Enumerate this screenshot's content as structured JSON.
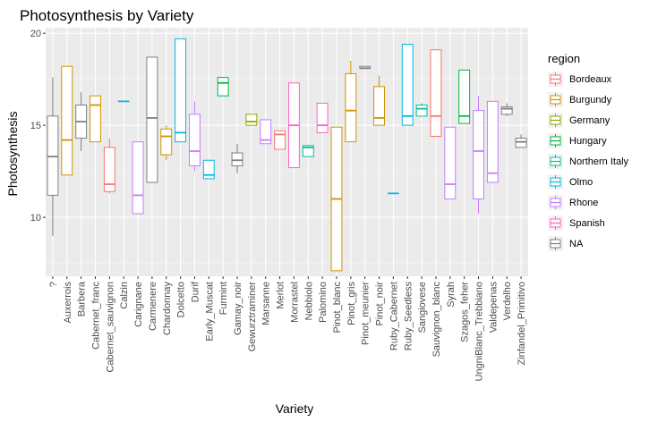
{
  "chart_data": {
    "type": "boxplot",
    "title": "Photosynthesis by Variety",
    "xlabel": "Variety",
    "ylabel": "Photosynthesis",
    "ylim": [
      6.8,
      20.3
    ],
    "yticks": [
      10,
      15,
      20
    ],
    "grid": true,
    "legend": {
      "title": "region",
      "position": "right",
      "entries": [
        "Bordeaux",
        "Burgundy",
        "Germany",
        "Hungary",
        "Northern Italy",
        "Olmo",
        "Rhone",
        "Spanish",
        "NA"
      ]
    },
    "colors": {
      "Bordeaux": "#F8766D",
      "Burgundy": "#D39200",
      "Germany": "#93AA00",
      "Hungary": "#00BA38",
      "Northern Italy": "#00C19F",
      "Olmo": "#00B9E3",
      "Rhone": "#C77CFF",
      "Spanish": "#FF61C3",
      "NA": "#7F7F7F"
    },
    "boxes": [
      {
        "variety": "?",
        "region": "NA",
        "min": 9.0,
        "q1": 11.2,
        "median": 13.3,
        "q3": 15.5,
        "max": 17.6
      },
      {
        "variety": "Auxerrois",
        "region": "Burgundy",
        "min": 12.3,
        "q1": 12.3,
        "median": 14.2,
        "q3": 18.2,
        "max": 18.2
      },
      {
        "variety": "Barbera",
        "region": "NA",
        "min": 13.6,
        "q1": 14.3,
        "median": 15.2,
        "q3": 16.1,
        "max": 16.8
      },
      {
        "variety": "Cabernet_franc",
        "region": "Burgundy",
        "min": 14.1,
        "q1": 14.1,
        "median": 16.1,
        "q3": 16.6,
        "max": 16.6
      },
      {
        "variety": "Cabernet_sauvignon",
        "region": "Bordeaux",
        "min": 11.3,
        "q1": 11.4,
        "median": 11.8,
        "q3": 13.8,
        "max": 14.3
      },
      {
        "variety": "Calzin",
        "region": "Olmo",
        "min": 16.3,
        "q1": 16.3,
        "median": 16.3,
        "q3": 16.3,
        "max": 16.3
      },
      {
        "variety": "Carignane",
        "region": "Rhone",
        "min": 10.2,
        "q1": 10.2,
        "median": 11.2,
        "q3": 14.1,
        "max": 14.1
      },
      {
        "variety": "Carmenere",
        "region": "NA",
        "min": 11.9,
        "q1": 11.9,
        "median": 15.4,
        "q3": 18.7,
        "max": 18.7
      },
      {
        "variety": "Chardonnay",
        "region": "Burgundy",
        "min": 13.1,
        "q1": 13.4,
        "median": 14.4,
        "q3": 14.8,
        "max": 15.0
      },
      {
        "variety": "Dolcetto",
        "region": "Olmo",
        "min": 14.1,
        "q1": 14.1,
        "median": 14.6,
        "q3": 19.7,
        "max": 19.7
      },
      {
        "variety": "Durif",
        "region": "Rhone",
        "min": 12.5,
        "q1": 12.8,
        "median": 13.6,
        "q3": 15.6,
        "max": 16.3
      },
      {
        "variety": "Early_Muscat",
        "region": "Olmo",
        "min": 12.1,
        "q1": 12.1,
        "median": 12.3,
        "q3": 13.1,
        "max": 13.1
      },
      {
        "variety": "Furmint",
        "region": "Hungary",
        "min": 16.6,
        "q1": 16.6,
        "median": 17.3,
        "q3": 17.6,
        "max": 17.6
      },
      {
        "variety": "Gamay_noir",
        "region": "NA",
        "min": 12.4,
        "q1": 12.8,
        "median": 13.1,
        "q3": 13.5,
        "max": 14.0
      },
      {
        "variety": "Gewurztraminer",
        "region": "Germany",
        "min": 15.0,
        "q1": 15.0,
        "median": 15.2,
        "q3": 15.6,
        "max": 15.6
      },
      {
        "variety": "Marsanne",
        "region": "Rhone",
        "min": 14.0,
        "q1": 14.0,
        "median": 14.2,
        "q3": 15.3,
        "max": 15.3
      },
      {
        "variety": "Merlot",
        "region": "Bordeaux",
        "min": 13.7,
        "q1": 13.7,
        "median": 14.5,
        "q3": 14.7,
        "max": 14.7
      },
      {
        "variety": "Morrastel",
        "region": "Spanish",
        "min": 12.7,
        "q1": 12.7,
        "median": 15.0,
        "q3": 17.3,
        "max": 17.3
      },
      {
        "variety": "Nebbiolo",
        "region": "Northern Italy",
        "min": 13.3,
        "q1": 13.3,
        "median": 13.8,
        "q3": 13.9,
        "max": 13.9
      },
      {
        "variety": "Palomino",
        "region": "Spanish",
        "min": 14.6,
        "q1": 14.6,
        "median": 15.0,
        "q3": 16.2,
        "max": 16.2
      },
      {
        "variety": "Pinot_blanc",
        "region": "Burgundy",
        "min": 7.1,
        "q1": 7.1,
        "median": 11.0,
        "q3": 14.9,
        "max": 14.9
      },
      {
        "variety": "Pinot_gris",
        "region": "Burgundy",
        "min": 14.1,
        "q1": 14.1,
        "median": 15.8,
        "q3": 17.8,
        "max": 18.5
      },
      {
        "variety": "Pinot_meunier",
        "region": "NA",
        "min": 18.1,
        "q1": 18.1,
        "median": 18.1,
        "q3": 18.2,
        "max": 18.2
      },
      {
        "variety": "Pinot_noir",
        "region": "Burgundy",
        "min": 15.0,
        "q1": 15.0,
        "median": 15.4,
        "q3": 17.1,
        "max": 17.7
      },
      {
        "variety": "Ruby_Cabernet",
        "region": "Olmo",
        "min": 11.3,
        "q1": 11.3,
        "median": 11.3,
        "q3": 11.3,
        "max": 11.3
      },
      {
        "variety": "Ruby_Seedless",
        "region": "Olmo",
        "min": 15.0,
        "q1": 15.0,
        "median": 15.5,
        "q3": 19.4,
        "max": 19.4
      },
      {
        "variety": "Sangiovese",
        "region": "Northern Italy",
        "min": 15.5,
        "q1": 15.5,
        "median": 15.9,
        "q3": 16.1,
        "max": 16.2
      },
      {
        "variety": "Sauvignon_blanc",
        "region": "Bordeaux",
        "min": 14.4,
        "q1": 14.4,
        "median": 15.5,
        "q3": 19.1,
        "max": 19.1
      },
      {
        "variety": "Syrah",
        "region": "Rhone",
        "min": 11.0,
        "q1": 11.0,
        "median": 11.8,
        "q3": 14.9,
        "max": 14.9
      },
      {
        "variety": "Szagos_feher",
        "region": "Hungary",
        "min": 15.1,
        "q1": 15.1,
        "median": 15.5,
        "q3": 18.0,
        "max": 18.0
      },
      {
        "variety": "UngniBlanc_Trebbiano",
        "region": "Rhone",
        "min": 10.2,
        "q1": 11.0,
        "median": 13.6,
        "q3": 15.8,
        "max": 16.6
      },
      {
        "variety": "Valdepenas",
        "region": "Rhone",
        "min": 11.9,
        "q1": 11.9,
        "median": 12.4,
        "q3": 16.3,
        "max": 16.3
      },
      {
        "variety": "Verdelho",
        "region": "NA",
        "min": 15.5,
        "q1": 15.6,
        "median": 15.9,
        "q3": 16.0,
        "max": 16.2
      },
      {
        "variety": "Zinfandel_Primitivo",
        "region": "NA",
        "min": 13.8,
        "q1": 13.8,
        "median": 14.1,
        "q3": 14.3,
        "max": 14.5
      }
    ]
  }
}
